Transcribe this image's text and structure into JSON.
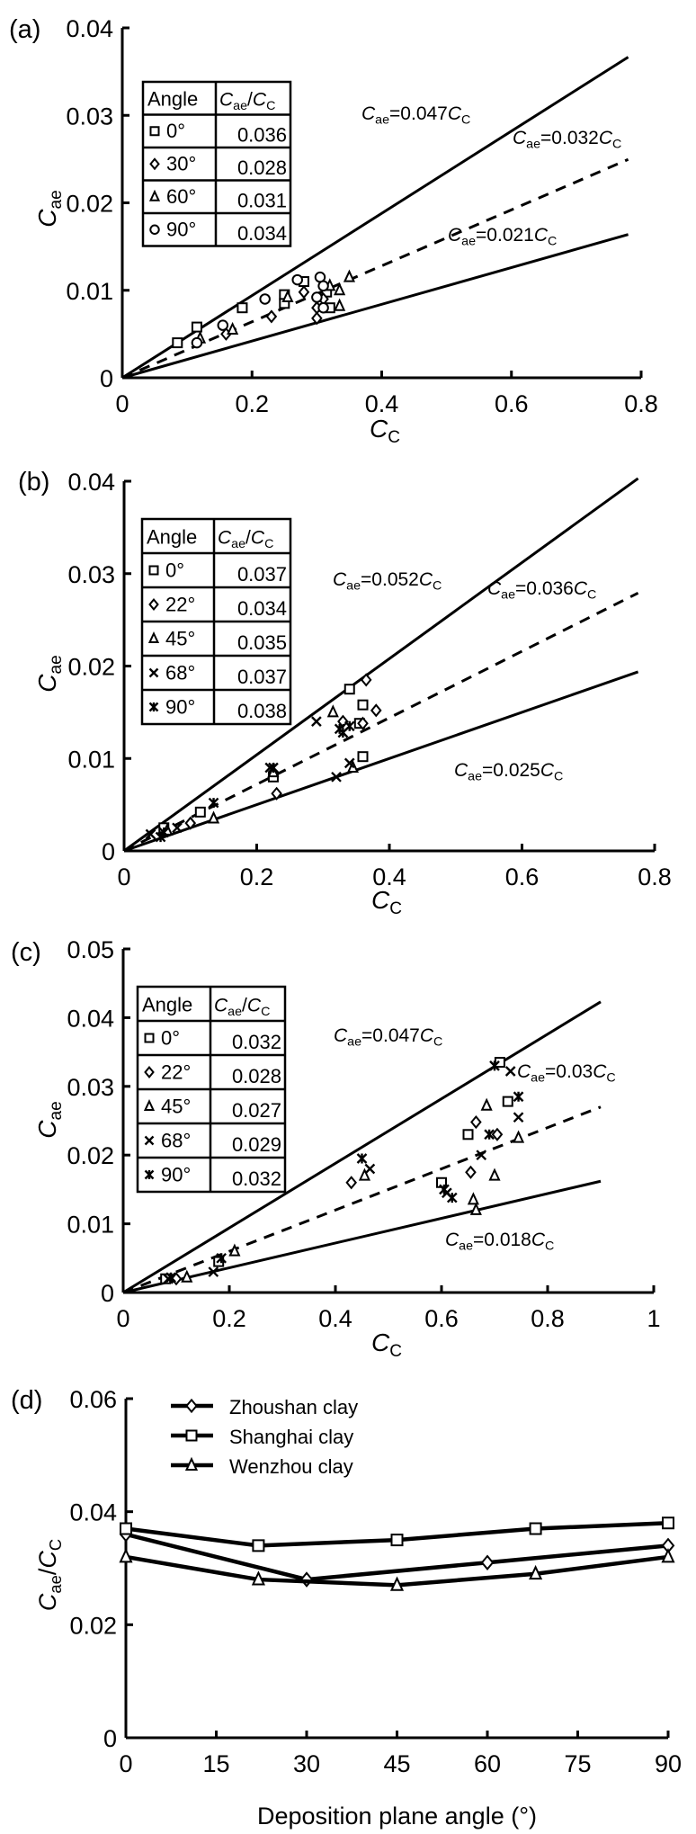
{
  "chart_data": [
    {
      "panel": "(a)",
      "type": "scatter",
      "xlabel": "C_C",
      "ylabel": "C_ae",
      "xlim": [
        0,
        0.8
      ],
      "ylim": [
        0,
        0.04
      ],
      "xticks": [
        "0",
        "0.2",
        "0.4",
        "0.6",
        "0.8"
      ],
      "yticks": [
        "0",
        "0.01",
        "0.02",
        "0.03",
        "0.04"
      ],
      "table": {
        "headers": [
          "Angle",
          "Cae/CC"
        ],
        "rows": [
          {
            "marker": "square",
            "angle": "0°",
            "ratio": "0.036"
          },
          {
            "marker": "diamond",
            "angle": "30°",
            "ratio": "0.028"
          },
          {
            "marker": "triangle",
            "angle": "60°",
            "ratio": "0.031"
          },
          {
            "marker": "circle",
            "angle": "90°",
            "ratio": "0.034"
          }
        ]
      },
      "fit_lines": [
        {
          "slope": 0.047,
          "style": "solid",
          "label": "=0.047"
        },
        {
          "slope": 0.032,
          "style": "dashed",
          "label": "=0.032"
        },
        {
          "slope": 0.021,
          "style": "solid",
          "label": "=0.021"
        }
      ],
      "series": [
        {
          "name": "0°",
          "marker": "square",
          "points": [
            [
              0.085,
              0.004
            ],
            [
              0.115,
              0.0058
            ],
            [
              0.185,
              0.008
            ],
            [
              0.25,
              0.0095
            ],
            [
              0.25,
              0.0085
            ],
            [
              0.28,
              0.011
            ],
            [
              0.315,
              0.0098
            ],
            [
              0.32,
              0.008
            ]
          ]
        },
        {
          "name": "30°",
          "marker": "diamond",
          "points": [
            [
              0.16,
              0.005
            ],
            [
              0.23,
              0.007
            ],
            [
              0.28,
              0.0098
            ],
            [
              0.3,
              0.008
            ],
            [
              0.3,
              0.0068
            ],
            [
              0.31,
              0.009
            ]
          ]
        },
        {
          "name": "60°",
          "marker": "triangle",
          "points": [
            [
              0.12,
              0.0045
            ],
            [
              0.17,
              0.0055
            ],
            [
              0.255,
              0.0092
            ],
            [
              0.32,
              0.0105
            ],
            [
              0.335,
              0.01
            ],
            [
              0.335,
              0.0082
            ],
            [
              0.35,
              0.0115
            ]
          ]
        },
        {
          "name": "90°",
          "marker": "circle",
          "points": [
            [
              0.115,
              0.004
            ],
            [
              0.155,
              0.006
            ],
            [
              0.22,
              0.009
            ],
            [
              0.27,
              0.0112
            ],
            [
              0.305,
              0.0115
            ],
            [
              0.31,
              0.0105
            ],
            [
              0.31,
              0.008
            ],
            [
              0.3,
              0.0092
            ]
          ]
        }
      ]
    },
    {
      "panel": "(b)",
      "type": "scatter",
      "xlabel": "C_C",
      "ylabel": "C_ae",
      "xlim": [
        0,
        0.8
      ],
      "ylim": [
        0,
        0.04
      ],
      "xticks": [
        "0",
        "0.2",
        "0.4",
        "0.6",
        "0.8"
      ],
      "yticks": [
        "0",
        "0.01",
        "0.02",
        "0.03",
        "0.04"
      ],
      "table": {
        "headers": [
          "Angle",
          "Cae/CC"
        ],
        "rows": [
          {
            "marker": "square",
            "angle": "0°",
            "ratio": "0.037"
          },
          {
            "marker": "diamond",
            "angle": "22°",
            "ratio": "0.034"
          },
          {
            "marker": "triangle",
            "angle": "45°",
            "ratio": "0.035"
          },
          {
            "marker": "x",
            "angle": "68°",
            "ratio": "0.037"
          },
          {
            "marker": "asterisk",
            "angle": "90°",
            "ratio": "0.038"
          }
        ]
      },
      "fit_lines": [
        {
          "slope": 0.052,
          "style": "solid",
          "label": "=0.052"
        },
        {
          "slope": 0.036,
          "style": "dashed",
          "label": "=0.036"
        },
        {
          "slope": 0.025,
          "style": "solid",
          "label": "=0.025"
        }
      ],
      "series": [
        {
          "name": "0°",
          "marker": "square",
          "points": [
            [
              0.06,
              0.0025
            ],
            [
              0.115,
              0.0042
            ],
            [
              0.225,
              0.008
            ],
            [
              0.34,
              0.0175
            ],
            [
              0.36,
              0.0158
            ],
            [
              0.355,
              0.0138
            ],
            [
              0.36,
              0.0102
            ]
          ]
        },
        {
          "name": "22°",
          "marker": "diamond",
          "points": [
            [
              0.1,
              0.003
            ],
            [
              0.23,
              0.0062
            ],
            [
              0.33,
              0.014
            ],
            [
              0.365,
              0.0185
            ],
            [
              0.38,
              0.0152
            ],
            [
              0.36,
              0.0138
            ]
          ]
        },
        {
          "name": "45°",
          "marker": "triangle",
          "points": [
            [
              0.065,
              0.0022
            ],
            [
              0.135,
              0.0035
            ],
            [
              0.315,
              0.015
            ],
            [
              0.345,
              0.009
            ],
            [
              0.225,
              0.0085
            ]
          ]
        },
        {
          "name": "68°",
          "marker": "x",
          "points": [
            [
              0.04,
              0.0018
            ],
            [
              0.08,
              0.0025
            ],
            [
              0.29,
              0.014
            ],
            [
              0.34,
              0.0095
            ],
            [
              0.32,
              0.008
            ],
            [
              0.22,
              0.009
            ]
          ]
        },
        {
          "name": "90°",
          "marker": "asterisk",
          "points": [
            [
              0.055,
              0.0015
            ],
            [
              0.135,
              0.0052
            ],
            [
              0.225,
              0.009
            ],
            [
              0.325,
              0.0132
            ],
            [
              0.34,
              0.0135
            ],
            [
              0.33,
              0.0128
            ],
            [
              0.06,
              0.002
            ]
          ]
        }
      ]
    },
    {
      "panel": "(c)",
      "type": "scatter",
      "xlabel": "C_C",
      "ylabel": "C_ae",
      "xlim": [
        0,
        1
      ],
      "ylim": [
        0,
        0.05
      ],
      "xticks": [
        "0",
        "0.2",
        "0.4",
        "0.6",
        "0.8",
        "1"
      ],
      "yticks": [
        "0",
        "0.01",
        "0.02",
        "0.03",
        "0.04",
        "0.05"
      ],
      "table": {
        "headers": [
          "Angle",
          "Cae/CC"
        ],
        "rows": [
          {
            "marker": "square",
            "angle": "0°",
            "ratio": "0.032"
          },
          {
            "marker": "diamond",
            "angle": "22°",
            "ratio": "0.028"
          },
          {
            "marker": "triangle",
            "angle": "45°",
            "ratio": "0.027"
          },
          {
            "marker": "x",
            "angle": "68°",
            "ratio": "0.029"
          },
          {
            "marker": "asterisk",
            "angle": "90°",
            "ratio": "0.032"
          }
        ]
      },
      "fit_lines": [
        {
          "slope": 0.047,
          "style": "solid",
          "label": "=0.047"
        },
        {
          "slope": 0.03,
          "style": "dashed",
          "label": "=0.03"
        },
        {
          "slope": 0.018,
          "style": "solid",
          "label": "=0.018"
        }
      ],
      "series": [
        {
          "name": "0°",
          "marker": "square",
          "points": [
            [
              0.08,
              0.002
            ],
            [
              0.18,
              0.0045
            ],
            [
              0.6,
              0.016
            ],
            [
              0.65,
              0.023
            ],
            [
              0.71,
              0.0335
            ],
            [
              0.725,
              0.0278
            ]
          ]
        },
        {
          "name": "22°",
          "marker": "diamond",
          "points": [
            [
              0.1,
              0.002
            ],
            [
              0.43,
              0.016
            ],
            [
              0.655,
              0.0175
            ],
            [
              0.665,
              0.0248
            ],
            [
              0.705,
              0.023
            ]
          ]
        },
        {
          "name": "45°",
          "marker": "triangle",
          "points": [
            [
              0.12,
              0.0022
            ],
            [
              0.21,
              0.006
            ],
            [
              0.455,
              0.017
            ],
            [
              0.66,
              0.0135
            ],
            [
              0.665,
              0.012
            ],
            [
              0.685,
              0.0272
            ],
            [
              0.7,
              0.017
            ],
            [
              0.745,
              0.0225
            ]
          ]
        },
        {
          "name": "68°",
          "marker": "x",
          "points": [
            [
              0.085,
              0.002
            ],
            [
              0.17,
              0.003
            ],
            [
              0.465,
              0.018
            ],
            [
              0.61,
              0.0145
            ],
            [
              0.675,
              0.02
            ],
            [
              0.73,
              0.0322
            ],
            [
              0.745,
              0.0255
            ]
          ]
        },
        {
          "name": "90°",
          "marker": "asterisk",
          "points": [
            [
              0.09,
              0.0022
            ],
            [
              0.185,
              0.005
            ],
            [
              0.45,
              0.0195
            ],
            [
              0.605,
              0.015
            ],
            [
              0.62,
              0.0138
            ],
            [
              0.69,
              0.023
            ],
            [
              0.7,
              0.033
            ],
            [
              0.745,
              0.0285
            ]
          ]
        }
      ]
    },
    {
      "panel": "(d)",
      "type": "line",
      "xlabel": "Deposition plane angle (°)",
      "ylabel": "Cae/CC",
      "xlim": [
        0,
        90
      ],
      "ylim": [
        0,
        0.06
      ],
      "xticks": [
        "0",
        "15",
        "30",
        "45",
        "60",
        "75",
        "90"
      ],
      "yticks": [
        "0",
        "0.02",
        "0.04",
        "0.06"
      ],
      "legend_position": "top-left",
      "series": [
        {
          "name": "Zhoushan clay",
          "marker": "diamond",
          "x": [
            0,
            30,
            60,
            90
          ],
          "values": [
            0.036,
            0.028,
            0.031,
            0.034
          ]
        },
        {
          "name": "Shanghai clay",
          "marker": "square",
          "x": [
            0,
            22,
            45,
            68,
            90
          ],
          "values": [
            0.037,
            0.034,
            0.035,
            0.037,
            0.038
          ]
        },
        {
          "name": "Wenzhou clay",
          "marker": "triangle",
          "x": [
            0,
            22,
            45,
            68,
            90
          ],
          "values": [
            0.032,
            0.028,
            0.027,
            0.029,
            0.032
          ]
        }
      ]
    }
  ]
}
